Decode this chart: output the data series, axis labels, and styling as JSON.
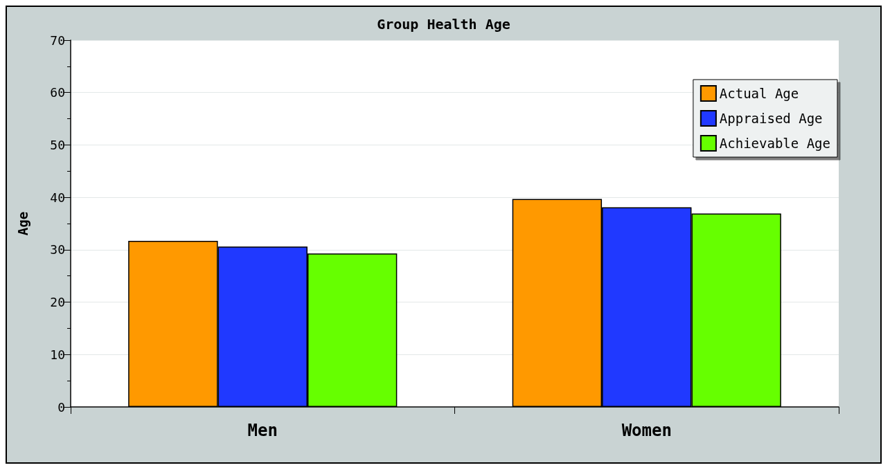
{
  "chart_data": {
    "type": "bar",
    "title": "Group Health Age",
    "ylabel": "Age",
    "categories": [
      "Men",
      "Women"
    ],
    "series": [
      {
        "name": "Actual Age",
        "color": "#ff9900",
        "values": [
          31.7,
          39.7
        ]
      },
      {
        "name": "Appraised Age",
        "color": "#2039ff",
        "values": [
          30.6,
          38.1
        ]
      },
      {
        "name": "Achievable Age",
        "color": "#66ff00",
        "values": [
          29.3,
          36.9
        ]
      }
    ],
    "ylim": [
      0,
      70
    ],
    "yticks": [
      0,
      10,
      20,
      30,
      40,
      50,
      60,
      70
    ],
    "grid": "y",
    "legend": "top right"
  }
}
